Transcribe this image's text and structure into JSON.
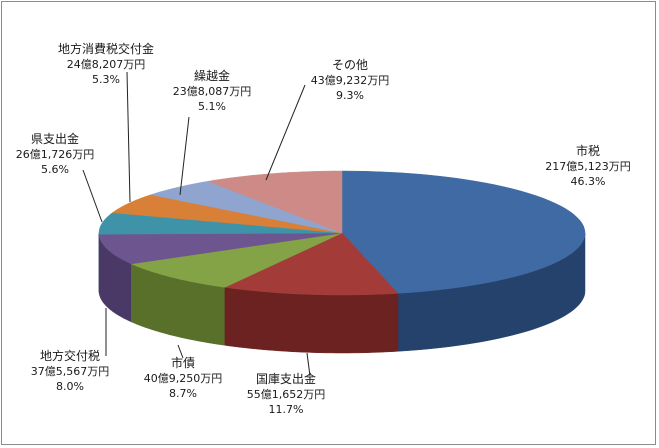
{
  "chart_data": {
    "type": "pie",
    "style": "3d",
    "title": "",
    "slices": [
      {
        "name": "市税",
        "amount": "217億5,123万円",
        "percent": "46.3%",
        "value": 46.3,
        "color": "#3f6aa4",
        "side": "#25426d"
      },
      {
        "name": "国庫支出金",
        "amount": "55億1,652万円",
        "percent": "11.7%",
        "value": 11.7,
        "color": "#a33c38",
        "side": "#6b2220"
      },
      {
        "name": "市債",
        "amount": "40億9,250万円",
        "percent": "8.7%",
        "value": 8.7,
        "color": "#84a246",
        "side": "#58702a"
      },
      {
        "name": "地方交付税",
        "amount": "37億5,567万円",
        "percent": "8.0%",
        "value": 8.0,
        "color": "#6d5590",
        "side": "#4a3866"
      },
      {
        "name": "県支出金",
        "amount": "26億1,726万円",
        "percent": "5.6%",
        "value": 5.6,
        "color": "#3e93a8",
        "side": "#276676"
      },
      {
        "name": "地方消費税交付金",
        "amount": "24億8,207万円",
        "percent": "5.3%",
        "value": 5.3,
        "color": "#d87f38",
        "side": "#98551f"
      },
      {
        "name": "繰越金",
        "amount": "23億8,087万円",
        "percent": "5.1%",
        "value": 5.1,
        "color": "#8fa5cf",
        "side": "#60759a"
      },
      {
        "name": "その他",
        "amount": "43億9,232万円",
        "percent": "9.3%",
        "value": 9.3,
        "color": "#cd8a86",
        "side": "#94605d"
      }
    ]
  }
}
